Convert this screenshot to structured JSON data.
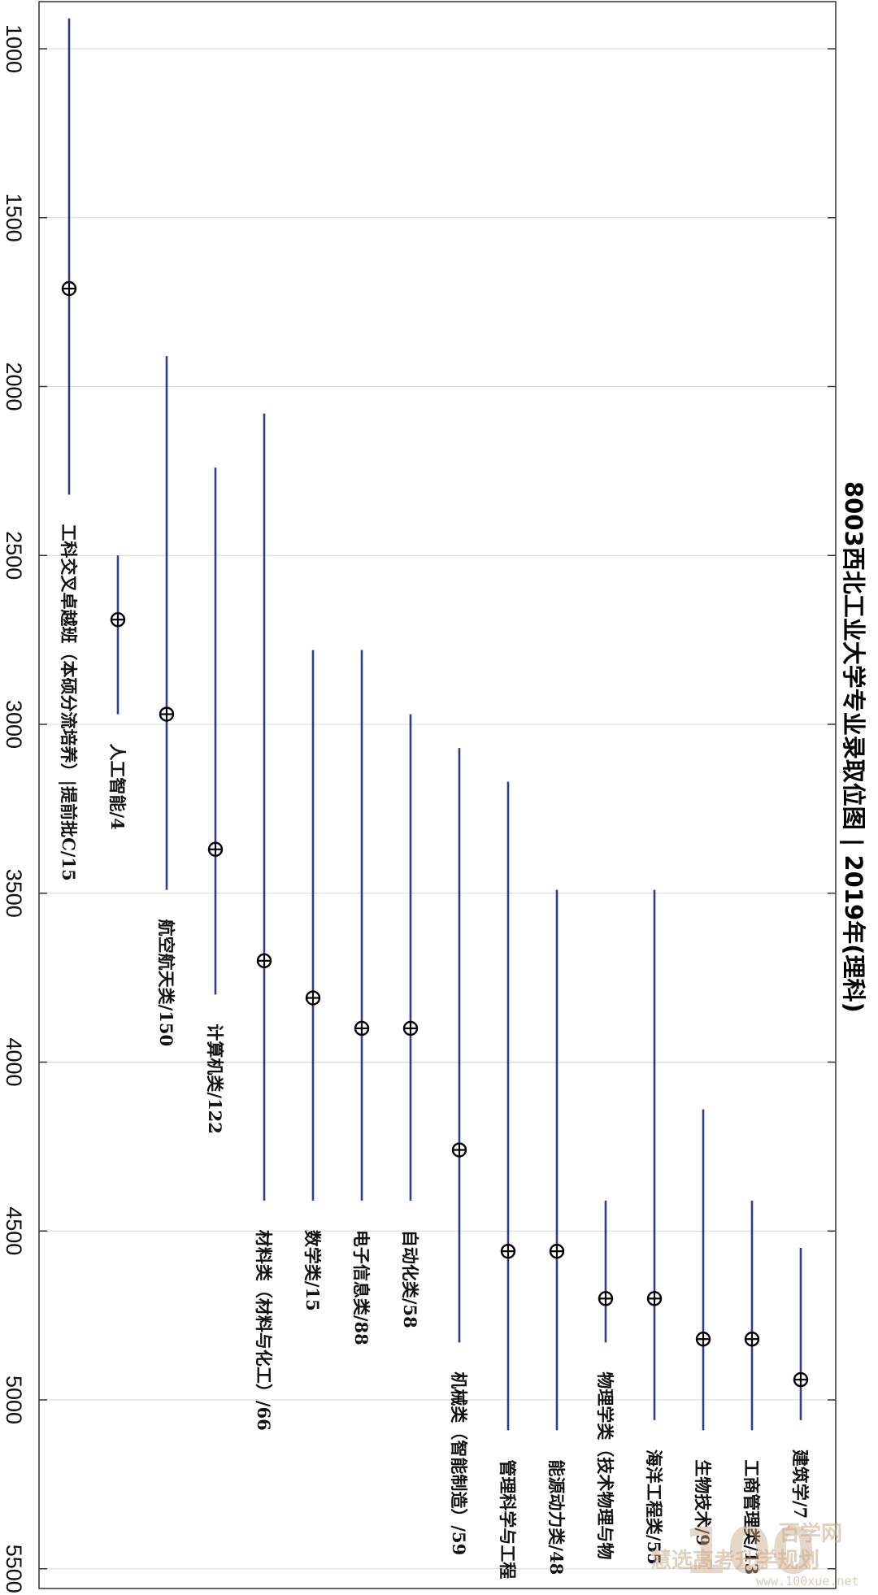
{
  "chart_data": {
    "type": "range",
    "orientation": "rotated-90-clockwise",
    "title": "8003西北工业大学专业录取位图 | 2019年(理科)",
    "xlabel": "",
    "ylabel": "",
    "ylim": [
      850,
      5560
    ],
    "ticks": [
      1000,
      1500,
      2000,
      2500,
      3000,
      3500,
      4000,
      4500,
      5000,
      5500
    ],
    "tick_labels": [
      "1000",
      "1500",
      "2000",
      "2500",
      "3000",
      "3500",
      "4000",
      "4500",
      "5000",
      "5500"
    ],
    "grid": true,
    "colors": {
      "range": "#2c3e8c",
      "marker": "#000000",
      "grid": "#d8d8d8"
    },
    "series": [
      {
        "label": "工科交叉卓越班（本硕分流培养）|提前批C/15",
        "min": 910,
        "max": 2320,
        "median": 1710
      },
      {
        "label": "人工智能/4",
        "min": 2500,
        "max": 2970,
        "median": 2690
      },
      {
        "label": "航空航天类/150",
        "min": 1910,
        "max": 3490,
        "median": 2970
      },
      {
        "label": "计算机类/122",
        "min": 2240,
        "max": 3800,
        "median": 3370
      },
      {
        "label": "材料类（材料与化工）/66",
        "min": 2080,
        "max": 4410,
        "median": 3700
      },
      {
        "label": "数学类/15",
        "min": 2780,
        "max": 4410,
        "median": 3810
      },
      {
        "label": "电子信息类/88",
        "min": 2780,
        "max": 4410,
        "median": 3900
      },
      {
        "label": "自动化类/58",
        "min": 2970,
        "max": 4410,
        "median": 3900
      },
      {
        "label": "机械类（智能制造）/59",
        "min": 3070,
        "max": 4830,
        "median": 4260
      },
      {
        "label": "管理科学与工程",
        "min": 3170,
        "max": 5090,
        "median": 4560
      },
      {
        "label": "能源动力类/48",
        "min": 3490,
        "max": 5090,
        "median": 4560
      },
      {
        "label": "物理学类（技术物理与物",
        "min": 4410,
        "max": 4830,
        "median": 4700
      },
      {
        "label": "海洋工程类/55",
        "min": 3490,
        "max": 5060,
        "median": 4700
      },
      {
        "label": "生物技术/9",
        "min": 4140,
        "max": 5090,
        "median": 4820
      },
      {
        "label": "工商管理类/13",
        "min": 4410,
        "max": 5090,
        "median": 4820
      },
      {
        "label": "建筑学/7",
        "min": 4550,
        "max": 5060,
        "median": 4940
      }
    ]
  },
  "watermark": {
    "main": "100",
    "cn": "百学网",
    "sub": "慧选高考升学规划",
    "url": "www.100xue.net"
  }
}
